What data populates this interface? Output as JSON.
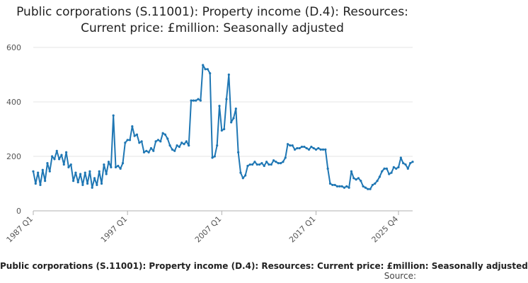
{
  "chart_data": {
    "type": "line",
    "title": "Public corporations (S.11001): Property income (D.4): Resources: Current price: £million: Seasonally adjusted",
    "legend": "Public corporations (S.11001): Property income (D.4): Resources: Current price: £million: Seasonally adjusted",
    "source_label": "Source:",
    "xlabel": "",
    "ylabel": "",
    "ylim": [
      0,
      600
    ],
    "yticks": [
      "0",
      "200",
      "400",
      "600"
    ],
    "xticks": [
      "1987 Q1",
      "1997 Q1",
      "2007 Q1",
      "2017 Q1",
      "2025 Q4"
    ],
    "x_start": "1987 Q1",
    "x_end": "2025 Q4",
    "grid": true,
    "series": [
      {
        "name": "Public corporations (S.11001): Property income (D.4): Resources: Current price: £million: Seasonally adjusted",
        "color": "#1f77b4",
        "values": [
          145,
          100,
          140,
          95,
          150,
          110,
          175,
          145,
          200,
          190,
          220,
          190,
          205,
          170,
          215,
          160,
          170,
          110,
          140,
          105,
          135,
          95,
          140,
          100,
          145,
          85,
          120,
          95,
          145,
          100,
          170,
          135,
          180,
          160,
          350,
          160,
          165,
          155,
          175,
          250,
          260,
          260,
          310,
          275,
          280,
          250,
          255,
          215,
          220,
          215,
          230,
          220,
          255,
          260,
          255,
          285,
          280,
          265,
          240,
          225,
          220,
          240,
          235,
          250,
          245,
          255,
          240,
          405,
          405,
          405,
          410,
          405,
          535,
          520,
          520,
          505,
          195,
          200,
          240,
          385,
          295,
          300,
          410,
          500,
          325,
          340,
          375,
          215,
          140,
          120,
          130,
          165,
          170,
          170,
          180,
          170,
          170,
          175,
          165,
          180,
          170,
          170,
          185,
          180,
          175,
          175,
          180,
          195,
          245,
          240,
          240,
          225,
          230,
          230,
          235,
          235,
          230,
          225,
          235,
          230,
          225,
          230,
          225,
          225,
          225,
          155,
          100,
          95,
          95,
          90,
          90,
          90,
          85,
          90,
          85,
          145,
          120,
          115,
          120,
          110,
          90,
          85,
          80,
          80,
          95,
          100,
          110,
          125,
          145,
          155,
          155,
          135,
          140,
          160,
          155,
          160,
          195,
          175,
          170,
          155,
          175,
          180
        ]
      }
    ]
  }
}
